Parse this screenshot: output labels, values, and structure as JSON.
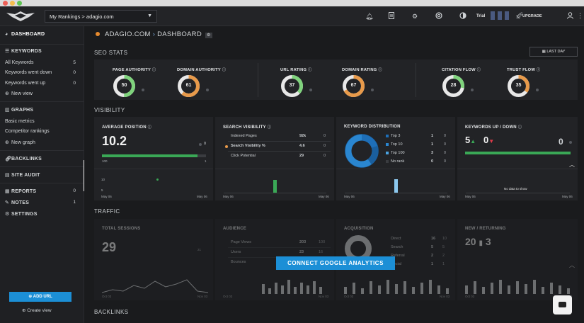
{
  "topbar": {
    "project_selector": "My Rankings > adagio.com",
    "trial_label": "Trial",
    "upgrade_label": "UPGRADE"
  },
  "sidebar": {
    "dashboard": "DASHBOARD",
    "keywords": "KEYWORDS",
    "keyword_items": [
      {
        "label": "All Keywords",
        "count": "5"
      },
      {
        "label": "Keywords went down",
        "count": "0"
      },
      {
        "label": "Keywords went up",
        "count": "0"
      }
    ],
    "new_view": "New view",
    "graphs": "GRAPHS",
    "graph_items": [
      "Basic metrics",
      "Competitor rankings"
    ],
    "new_graph": "New graph",
    "backlinks": "BACKLINKS",
    "site_audit": "SITE AUDIT",
    "reports": {
      "label": "REPORTS",
      "count": "0"
    },
    "notes": {
      "label": "NOTES",
      "count": "1"
    },
    "settings": "SETTINGS",
    "add_url": "ADD URL",
    "create_view": "Create view"
  },
  "breadcrumb": {
    "site": "ADAGIO.COM",
    "page": "DASHBOARD"
  },
  "seo_stats": {
    "title": "SEO STATS",
    "date_range": "LAST DAY",
    "metrics": [
      {
        "label": "PAGE AUTHORITY",
        "value": 50,
        "color": "#7fd37c"
      },
      {
        "label": "DOMAIN AUTHORITY",
        "value": 61,
        "color": "#e89a4a"
      },
      {
        "label": "URL RATING",
        "value": 37,
        "color": "#7fd37c"
      },
      {
        "label": "DOMAIN RATING",
        "value": 67,
        "color": "#e89a4a"
      },
      {
        "label": "CITATION FLOW",
        "value": 28,
        "color": "#7fd37c"
      },
      {
        "label": "TRUST FLOW",
        "value": 35,
        "color": "#e89a4a"
      }
    ]
  },
  "visibility": {
    "title": "VISIBILITY",
    "average_position": {
      "title": "AVERAGE POSITION",
      "value": "10.2",
      "change": "0",
      "range_min": "100",
      "range_max": "1",
      "progress": 0.92,
      "axis": [
        "10",
        "5"
      ],
      "date_start": "May 06",
      "date_end": "May 06"
    },
    "search_visibility": {
      "title": "SEARCH VISIBILITY",
      "rows": [
        {
          "label": "Indexed Pages",
          "value": "92k",
          "change": "0"
        },
        {
          "label": "Search Visibility %",
          "value": "4.6",
          "change": "0"
        },
        {
          "label": "Click Potential",
          "value": "29",
          "change": "0"
        }
      ],
      "date_start": "May 06",
      "date_end": "May 06"
    },
    "keyword_distribution": {
      "title": "KEYWORD DISTRIBUTION",
      "rows": [
        {
          "label": "Top 3",
          "value": "1",
          "change": "0",
          "color": "#1e6fb8"
        },
        {
          "label": "Top 10",
          "value": "1",
          "change": "0",
          "color": "#2a86d0"
        },
        {
          "label": "Top 100",
          "value": "3",
          "change": "0",
          "color": "#4aa2e0"
        },
        {
          "label": "No rank",
          "value": "0",
          "change": "0",
          "color": "#3a3c40"
        }
      ],
      "date_start": "May 06",
      "date_end": "May 06"
    },
    "keywords_up_down": {
      "title": "KEYWORDS UP / DOWN",
      "up": "5",
      "down": "0",
      "change": "0",
      "no_data": "No data to show",
      "date_start": "May 06",
      "date_end": "May 06"
    }
  },
  "traffic": {
    "title": "TRAFFIC",
    "total_sessions": {
      "title": "TOTAL SESSIONS",
      "value": "29",
      "change": "21",
      "date_start": "Oct 03",
      "date_end": "Nov 03"
    },
    "audience": {
      "title": "AUDIENCE",
      "rows": [
        {
          "label": "Page Views",
          "value": "203",
          "change": "100"
        },
        {
          "label": "Users",
          "value": "23",
          "change": "16"
        },
        {
          "label": "Bounces",
          "value": "18",
          "change": "18"
        }
      ],
      "date_start": "Oct 03",
      "date_end": "Nov 03"
    },
    "acquisition": {
      "title": "ACQUISITION",
      "rows": [
        {
          "label": "Direct",
          "value": "16",
          "change": "10"
        },
        {
          "label": "Search",
          "value": "5",
          "change": "5"
        },
        {
          "label": "Referral",
          "value": "2",
          "change": "2"
        },
        {
          "label": "Social",
          "value": "1",
          "change": "1"
        }
      ],
      "date_start": "Oct 03",
      "date_end": "Nov 03"
    },
    "new_returning": {
      "title": "NEW / RETURNING",
      "new": "20",
      "returning": "3",
      "date_start": "Oct 03",
      "date_end": "Nov 03"
    },
    "connect_button": "CONNECT GOOGLE ANALYTICS"
  },
  "backlinks": {
    "title": "BACKLINKS"
  }
}
